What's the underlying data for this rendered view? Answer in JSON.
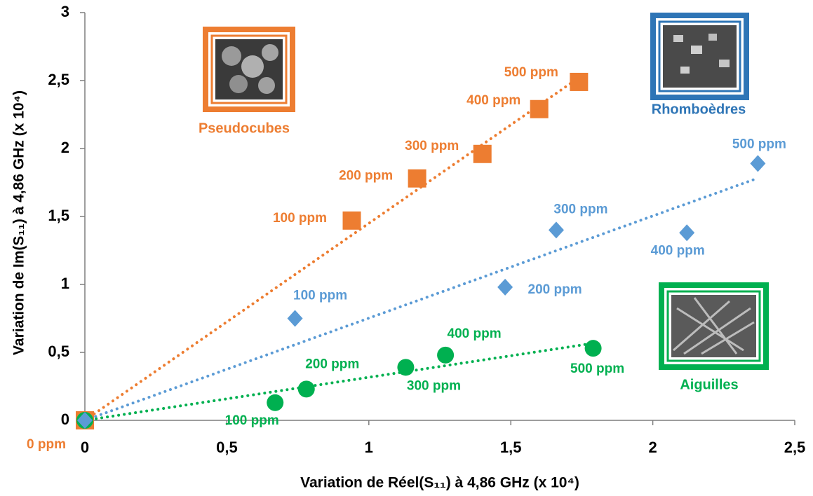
{
  "chart_data": {
    "type": "scatter",
    "x_label": "Variation de Réel(S₁₁) à 4,86 GHz (x 10⁴)",
    "y_label": "Variation de Im(S₁₁) à 4,86 GHz (x 10⁴)",
    "xlim": [
      0,
      2.5
    ],
    "ylim": [
      0,
      3
    ],
    "xticks": [
      0,
      {
        "value": 0.5,
        "label": "0,5"
      },
      1,
      {
        "value": 1.5,
        "label": "1,5"
      },
      2,
      {
        "value": 2.5,
        "label": "2,5"
      }
    ],
    "yticks": [
      0,
      {
        "value": 0.5,
        "label": "0,5"
      },
      1,
      {
        "value": 1.5,
        "label": "1,5"
      },
      2,
      {
        "value": 2.5,
        "label": "2,5"
      },
      3
    ],
    "grid": false,
    "trendline": true,
    "series": [
      {
        "color": "#ed7d31",
        "marker": "square",
        "x": [
          0,
          0.94,
          1.17,
          1.4,
          1.6,
          1.74
        ],
        "values": [
          0,
          1.47,
          1.78,
          1.96,
          2.29,
          2.49
        ],
        "labels": [
          "0 ppm",
          "100 ppm",
          "200 ppm",
          "300 ppm",
          "400 ppm",
          "500 ppm"
        ]
      },
      {
        "color": "#00b050",
        "marker": "circle",
        "x": [
          0,
          0.67,
          0.78,
          1.13,
          1.27,
          1.79
        ],
        "values": [
          0,
          0.13,
          0.23,
          0.39,
          0.48,
          0.53
        ],
        "labels": [
          null,
          "100 ppm",
          "200 ppm",
          "300 ppm",
          "400 ppm",
          "500 ppm"
        ]
      },
      {
        "color": "#5b9bd5",
        "marker": "diamond",
        "x": [
          0,
          0.74,
          1.48,
          1.66,
          2.12,
          2.37
        ],
        "values": [
          0,
          0.75,
          0.98,
          1.4,
          1.38,
          1.89
        ],
        "labels": [
          null,
          "100 ppm",
          "200 ppm",
          "300 ppm",
          "400 ppm",
          "500 ppm"
        ]
      }
    ],
    "annotations": [
      {
        "text": "Pseudocubes",
        "color": "#ed7d31"
      },
      {
        "text": "Rhomboèdres",
        "color": "#2e75b6"
      },
      {
        "text": "Aiguilles",
        "color": "#00b050"
      }
    ]
  }
}
